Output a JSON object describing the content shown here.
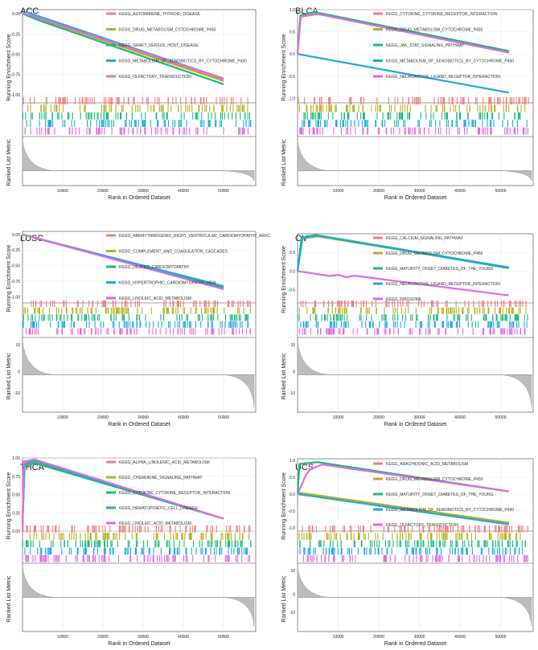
{
  "colors": {
    "red": "#f07f7f",
    "olive": "#b5b020",
    "green": "#1db87c",
    "blue": "#1eaadf",
    "magenta": "#e36ae3"
  },
  "common": {
    "y_top_label": "Running Enrichment Score",
    "y_bottom_label": "Ranked List Metric",
    "x_label": "Rank in Ordered Dataset",
    "x_ticks": [
      "10000",
      "20000",
      "30000",
      "40000",
      "50000"
    ]
  },
  "chart_data": [
    {
      "type": "line",
      "title": "ACC",
      "ylim": [
        -1.1,
        0.05
      ],
      "y_ticks": [
        "0.00",
        "-0.25",
        "-0.50",
        "-0.75",
        "-1.00"
      ],
      "metric_ticks": [],
      "series": [
        {
          "name": "KEGG_AUTOIMMUNE_THYROID_DISEASE",
          "color": "red",
          "points": [
            [
              0,
              0
            ],
            [
              2000,
              -0.03
            ],
            [
              50000,
              -0.82
            ]
          ]
        },
        {
          "name": "KEGG_DRUG_METABOLISM_CYTOCHROME_P450",
          "color": "olive",
          "points": [
            [
              0,
              0
            ],
            [
              2000,
              -0.03
            ],
            [
              50000,
              -0.83
            ]
          ]
        },
        {
          "name": "KEGG_GRAFT_VERSUS_HOST_DISEASE",
          "color": "green",
          "points": [
            [
              0,
              0
            ],
            [
              5000,
              -0.1
            ],
            [
              50000,
              -0.87
            ]
          ]
        },
        {
          "name": "KEGG_METABOLISM_OF_XENOBIOTICS_BY_CYTOCHROME_P450",
          "color": "blue",
          "points": [
            [
              0,
              0
            ],
            [
              1000,
              0.02
            ],
            [
              50000,
              -0.8
            ]
          ]
        },
        {
          "name": "KEGG_OLFACTORY_TRANSDUCTION",
          "color": "magenta",
          "points": [
            [
              0,
              0
            ],
            [
              2000,
              -0.02
            ],
            [
              50000,
              -0.8
            ]
          ]
        }
      ]
    },
    {
      "type": "line",
      "title": "BLCA",
      "ylim": [
        -1.1,
        1.0
      ],
      "y_ticks": [
        "1.0",
        "0.5",
        "0.0",
        "-0.5",
        "-1.0"
      ],
      "metric_ticks": [],
      "series": [
        {
          "name": "KEGG_CYTOKINE_CYTOKINE_RECEPTOR_INTERACTION",
          "color": "red",
          "points": [
            [
              0,
              0
            ],
            [
              800,
              0.85
            ],
            [
              5000,
              0.92
            ],
            [
              52000,
              0.05
            ]
          ]
        },
        {
          "name": "KEGG_DRUG_METABOLISM_CYTOCHROME_P450",
          "color": "olive",
          "points": [
            [
              0,
              0
            ],
            [
              800,
              0.86
            ],
            [
              5000,
              0.93
            ],
            [
              52000,
              0.05
            ]
          ]
        },
        {
          "name": "KEGG_JAK_STAT_SIGNALING_PATHWAY",
          "color": "green",
          "points": [
            [
              0,
              0
            ],
            [
              700,
              0.87
            ],
            [
              4000,
              0.95
            ],
            [
              52000,
              0.07
            ]
          ]
        },
        {
          "name": "KEGG_METABOLISM_OF_XENOBIOTICS_BY_CYTOCHROME_P450",
          "color": "blue",
          "points": [
            [
              0,
              0
            ],
            [
              52000,
              -0.87
            ]
          ]
        },
        {
          "name": "KEGG_NEUROACTIVE_LIGAND_RECEPTOR_INTERACTION",
          "color": "magenta",
          "points": [
            [
              0,
              0
            ],
            [
              800,
              0.84
            ],
            [
              5000,
              0.9
            ],
            [
              52000,
              0.03
            ]
          ]
        }
      ]
    },
    {
      "type": "line",
      "title": "LUSC",
      "ylim": [
        -1.1,
        0.05
      ],
      "y_ticks": [
        "0.00",
        "-0.25",
        "-0.50",
        "-0.75",
        "-1.00"
      ],
      "metric_ticks": [
        "10",
        "0",
        "-10"
      ],
      "series": [
        {
          "name": "KEGG_ARRHYTHMOGENIC_RIGHT_VENTRICULAR_CARDIOMYOPATHY_ARVC",
          "color": "red",
          "points": [
            [
              0,
              0
            ],
            [
              50000,
              -0.87
            ]
          ]
        },
        {
          "name": "KEGG_COMPLEMENT_AND_COAGULATION_CASCADES",
          "color": "olive",
          "points": [
            [
              0,
              0
            ],
            [
              50000,
              -0.85
            ]
          ]
        },
        {
          "name": "KEGG_DILATED_CARDIOMYOPATHY",
          "color": "green",
          "points": [
            [
              0,
              0
            ],
            [
              50000,
              -0.86
            ]
          ]
        },
        {
          "name": "KEGG_HYPERTROPHIC_CARDIOMYOPATHY_HCM",
          "color": "blue",
          "points": [
            [
              0,
              0
            ],
            [
              50000,
              -0.83
            ]
          ]
        },
        {
          "name": "KEGG_LINOLEIC_ACID_METABOLISM",
          "color": "magenta",
          "points": [
            [
              0,
              0
            ],
            [
              50000,
              -0.88
            ]
          ]
        }
      ]
    },
    {
      "type": "line",
      "title": "OV",
      "ylim": [
        -0.85,
        1.0
      ],
      "y_ticks": [
        "0.5",
        "0.0",
        "-0.5"
      ],
      "metric_ticks": [
        "10",
        "0",
        "-10"
      ],
      "series": [
        {
          "name": "KEGG_CALCIUM_SIGNALING_PATHWAY",
          "color": "red",
          "points": [
            [
              0,
              0
            ],
            [
              1000,
              0.9
            ],
            [
              5000,
              0.95
            ],
            [
              52000,
              0.08
            ]
          ]
        },
        {
          "name": "KEGG_DRUG_METABOLISM_CYTOCHROME_P450",
          "color": "olive",
          "points": [
            [
              0,
              0
            ],
            [
              1000,
              0.88
            ],
            [
              5000,
              0.93
            ],
            [
              52000,
              0.1
            ]
          ]
        },
        {
          "name": "KEGG_MATURITY_ONSET_DIABETES_OF_THE_YOUNG",
          "color": "green",
          "points": [
            [
              0,
              0
            ],
            [
              1000,
              0.9
            ],
            [
              4500,
              0.97
            ],
            [
              52000,
              0.1
            ]
          ]
        },
        {
          "name": "KEGG_NEUROACTIVE_LIGAND_RECEPTOR_INTERACTION",
          "color": "blue",
          "points": [
            [
              0,
              0
            ],
            [
              1200,
              0.88
            ],
            [
              5000,
              0.95
            ],
            [
              52000,
              0.08
            ]
          ]
        },
        {
          "name": "KEGG_RIBOSOME",
          "color": "magenta",
          "points": [
            [
              0,
              0
            ],
            [
              8000,
              -0.13
            ],
            [
              10000,
              -0.1
            ],
            [
              12000,
              -0.16
            ],
            [
              14000,
              -0.12
            ],
            [
              52000,
              -0.65
            ]
          ]
        }
      ]
    },
    {
      "type": "line",
      "title": "THCA",
      "ylim": [
        0.0,
        1.0
      ],
      "y_ticks": [
        "1.00",
        "0.75",
        "0.50",
        "0.25",
        "0.00"
      ],
      "metric_ticks": [],
      "series": [
        {
          "name": "KEGG_ALPHA_LINOLENIC_ACID_METABOLISM",
          "color": "red",
          "points": [
            [
              0,
              0.1
            ],
            [
              500,
              0.93
            ],
            [
              3000,
              0.97
            ],
            [
              50000,
              0.17
            ]
          ]
        },
        {
          "name": "KEGG_CHEMOKINE_SIGNALING_PATHWAY",
          "color": "olive",
          "points": [
            [
              0,
              0.1
            ],
            [
              500,
              0.9
            ],
            [
              3000,
              0.95
            ],
            [
              50000,
              0.17
            ]
          ]
        },
        {
          "name": "KEGG_CYTOKINE_CYTOKINE_RECEPTOR_INTERACTION",
          "color": "green",
          "points": [
            [
              0,
              0.1
            ],
            [
              500,
              0.88
            ],
            [
              3000,
              0.93
            ],
            [
              50000,
              0.17
            ]
          ]
        },
        {
          "name": "KEGG_HEMATOPOIETIC_CELL_LINEAGE",
          "color": "blue",
          "points": [
            [
              0,
              0.1
            ],
            [
              500,
              0.91
            ],
            [
              3000,
              0.96
            ],
            [
              50000,
              0.17
            ]
          ]
        },
        {
          "name": "KEGG_LINOLEIC_ACID_METABOLISM",
          "color": "magenta",
          "points": [
            [
              0,
              0.0
            ],
            [
              300,
              0.95
            ],
            [
              3000,
              0.98
            ],
            [
              50000,
              0.17
            ]
          ]
        }
      ]
    },
    {
      "type": "line",
      "title": "UCS",
      "ylim": [
        -1.1,
        1.05
      ],
      "y_ticks": [
        "1.0",
        "0.5",
        "0.0",
        "-0.5",
        "-1.0"
      ],
      "metric_ticks": [
        "10",
        "0",
        "-10"
      ],
      "series": [
        {
          "name": "KEGG_ARACHIDONIC_ACID_METABOLISM",
          "color": "red",
          "points": [
            [
              0,
              0.02
            ],
            [
              52000,
              -0.86
            ]
          ]
        },
        {
          "name": "KEGG_DRUG_METABOLISM_CYTOCHROME_P450",
          "color": "olive",
          "points": [
            [
              0,
              0.05
            ],
            [
              52000,
              -0.85
            ]
          ]
        },
        {
          "name": "KEGG_MATURITY_ONSET_DIABETES_OF_THE_YOUNG",
          "color": "green",
          "points": [
            [
              0,
              0
            ],
            [
              500,
              0.9
            ],
            [
              5000,
              0.95
            ],
            [
              52000,
              0.08
            ]
          ]
        },
        {
          "name": "KEGG_METABOLISM_OF_XENOBIOTICS_BY_CYTOCHROME_P450",
          "color": "blue",
          "points": [
            [
              0,
              0
            ],
            [
              52000,
              -0.9
            ]
          ]
        },
        {
          "name": "KEGG_OLFACTORY_TRANSDUCTION",
          "color": "magenta",
          "points": [
            [
              0,
              0
            ],
            [
              2000,
              0.55
            ],
            [
              3000,
              0.72
            ],
            [
              4000,
              0.78
            ],
            [
              6000,
              0.88
            ],
            [
              52000,
              0.08
            ]
          ]
        }
      ]
    }
  ]
}
